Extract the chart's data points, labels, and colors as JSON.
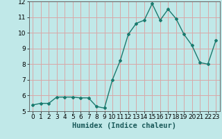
{
  "x": [
    0,
    1,
    2,
    3,
    4,
    5,
    6,
    7,
    8,
    9,
    10,
    11,
    12,
    13,
    14,
    15,
    16,
    17,
    18,
    19,
    20,
    21,
    22,
    23
  ],
  "y": [
    5.4,
    5.5,
    5.5,
    5.9,
    5.9,
    5.9,
    5.85,
    5.85,
    5.3,
    5.2,
    7.0,
    8.25,
    9.9,
    10.6,
    10.8,
    11.85,
    10.8,
    11.5,
    10.9,
    9.9,
    9.2,
    8.1,
    8.0,
    9.5
  ],
  "line_color": "#1a7a6e",
  "bg_color": "#c0e8e8",
  "grid_color": "#d8a8a8",
  "xlabel": "Humidex (Indice chaleur)",
  "ylim": [
    5,
    12
  ],
  "xlim": [
    -0.5,
    23.5
  ],
  "yticks": [
    5,
    6,
    7,
    8,
    9,
    10,
    11,
    12
  ],
  "xticks": [
    0,
    1,
    2,
    3,
    4,
    5,
    6,
    7,
    8,
    9,
    10,
    11,
    12,
    13,
    14,
    15,
    16,
    17,
    18,
    19,
    20,
    21,
    22,
    23
  ],
  "xlabel_fontsize": 7.5,
  "tick_fontsize": 6.5,
  "marker": "D",
  "marker_size": 2,
  "line_width": 1.0
}
